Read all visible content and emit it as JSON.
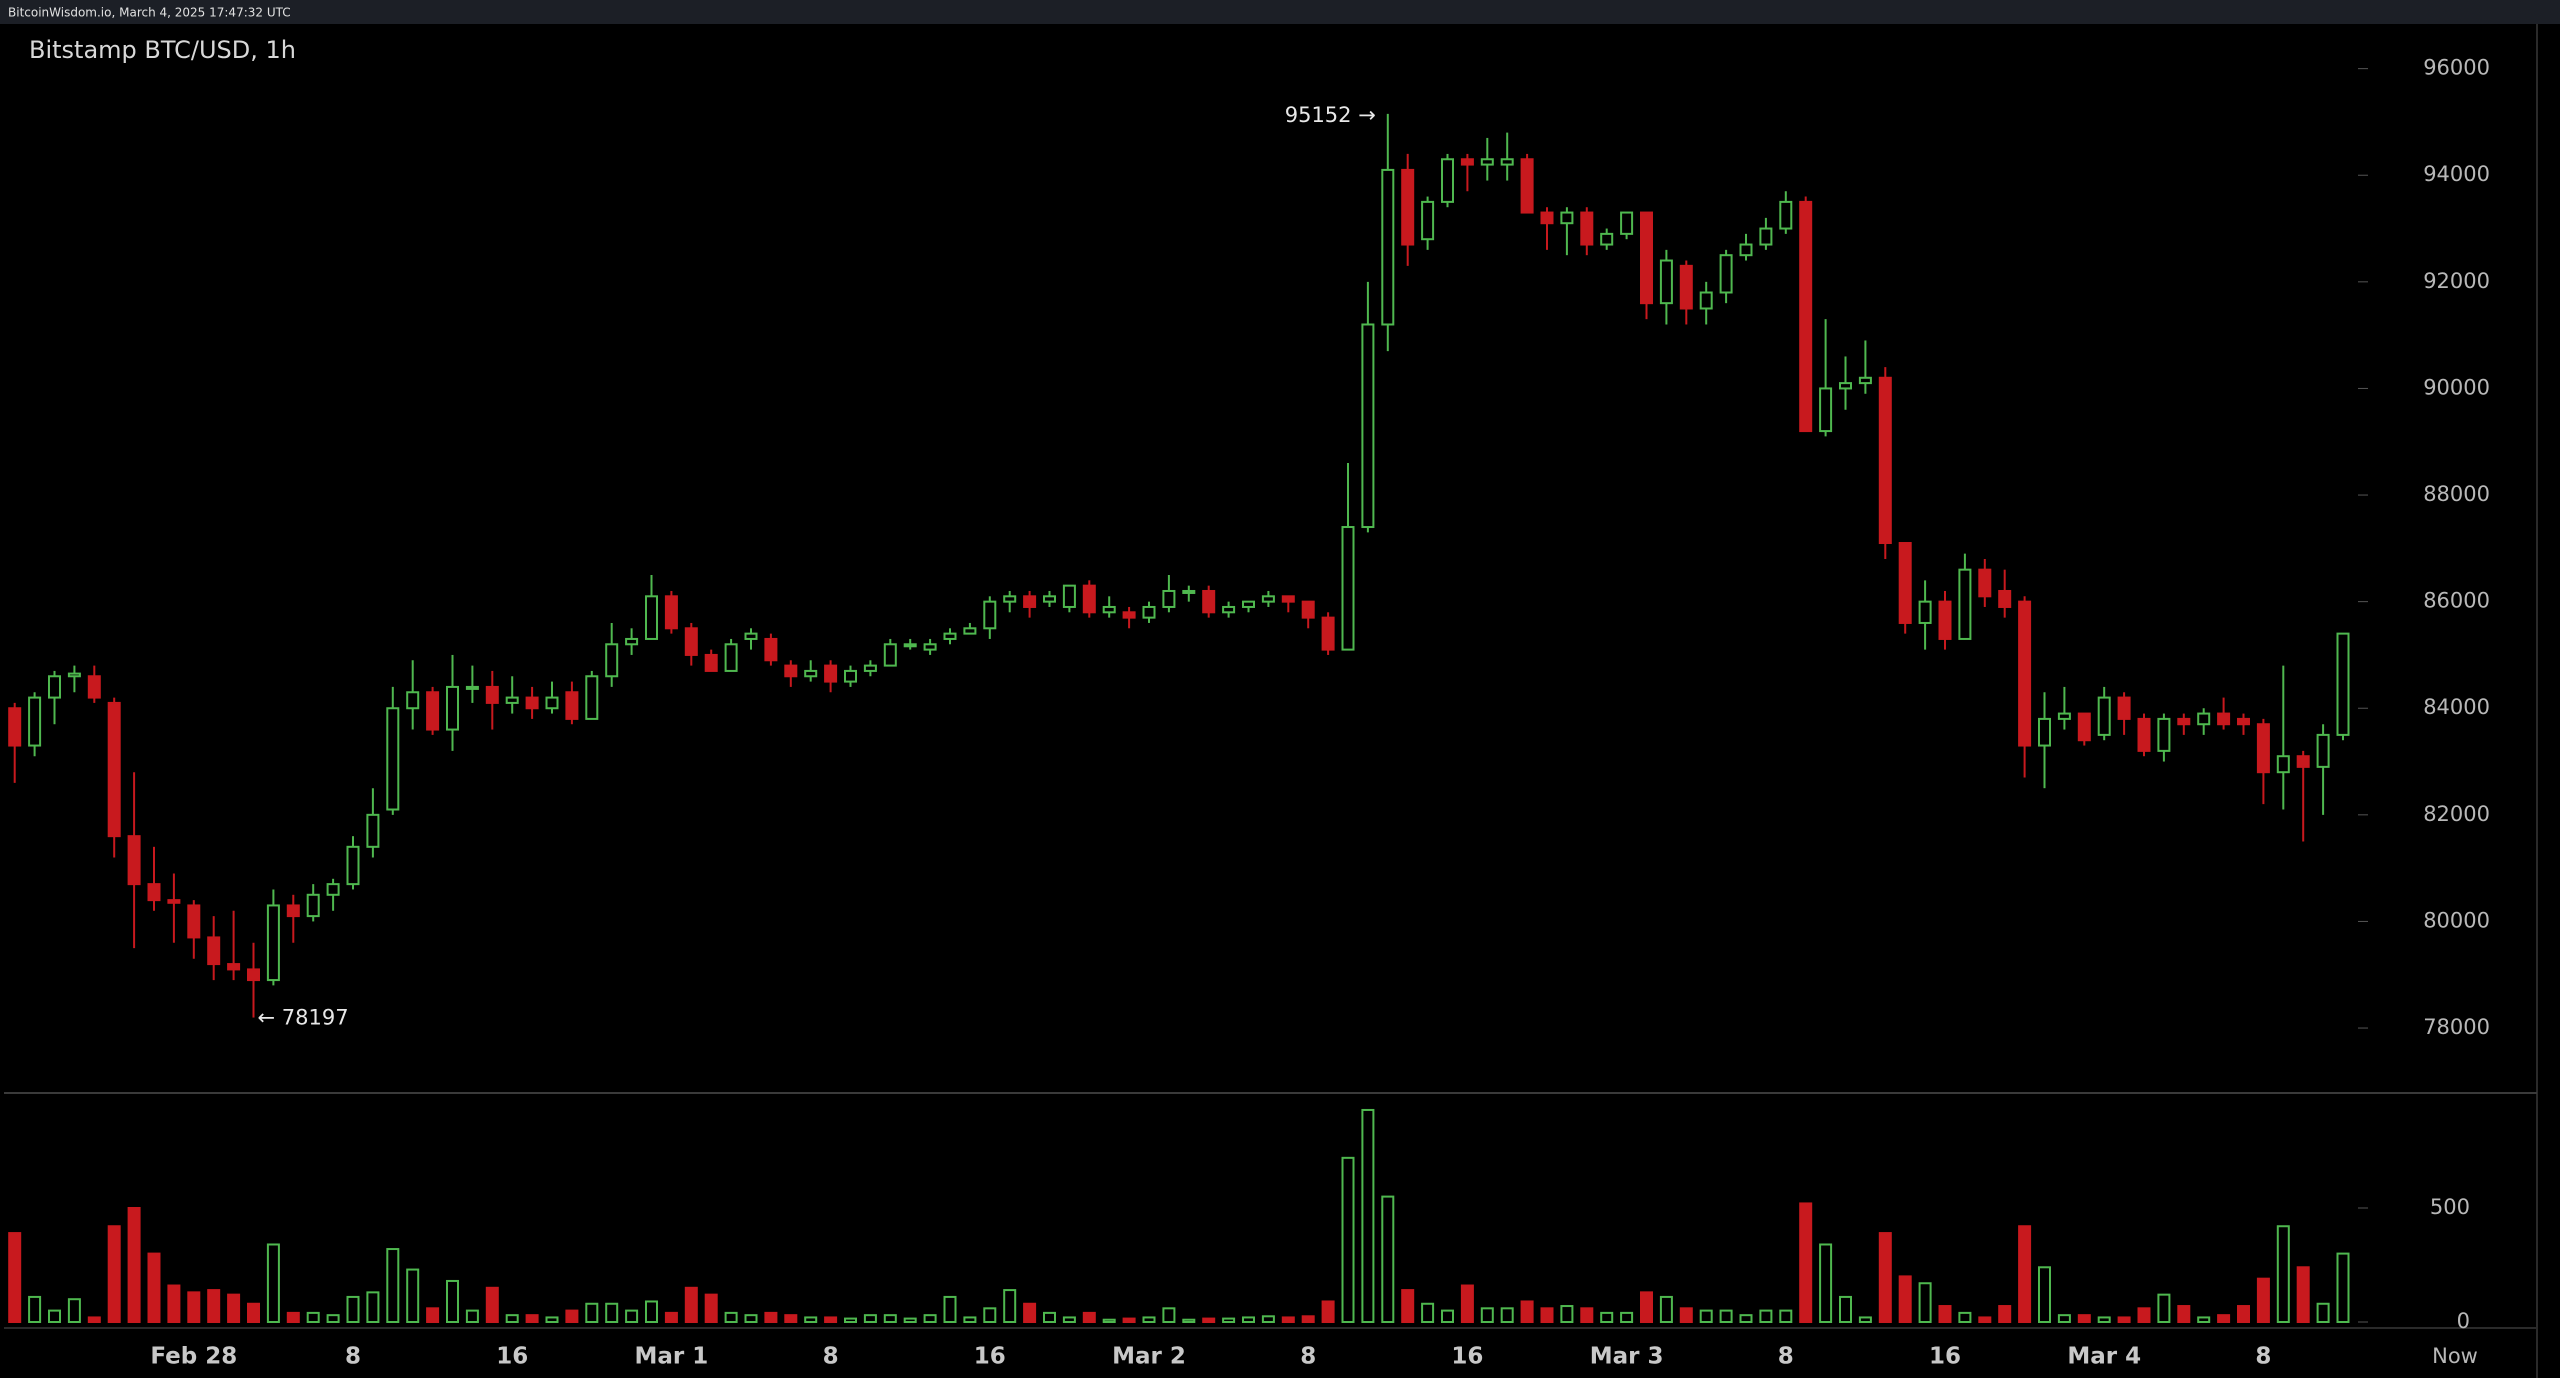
{
  "header": "BitcoinWisdom.io, March 4, 2025 17:47:32 UTC",
  "chart_data": {
    "type": "candlestick",
    "title": "Bitstamp BTC/USD, 1h",
    "up_color": "#4fb84f",
    "down_color": "#c8191e",
    "categories": [
      null,
      null,
      null,
      null,
      null,
      null,
      null,
      null,
      null,
      "Feb 28",
      null,
      null,
      null,
      null,
      null,
      null,
      null,
      "8",
      null,
      null,
      null,
      null,
      null,
      null,
      null,
      "16",
      null,
      null,
      null,
      null,
      null,
      null,
      null,
      "Mar 1",
      null,
      null,
      null,
      null,
      null,
      null,
      null,
      "8",
      null,
      null,
      null,
      null,
      null,
      null,
      null,
      "16",
      null,
      null,
      null,
      null,
      null,
      null,
      null,
      "Mar 2",
      null,
      null,
      null,
      null,
      null,
      null,
      null,
      "8",
      null,
      null,
      null,
      null,
      null,
      null,
      null,
      "16",
      null,
      null,
      null,
      null,
      null,
      null,
      null,
      "Mar 3",
      null,
      null,
      null,
      null,
      null,
      null,
      null,
      "8",
      null,
      null,
      null,
      null,
      null,
      null,
      null,
      "16",
      null,
      null,
      null,
      null,
      null,
      null,
      null,
      "Mar 4",
      null,
      null,
      null,
      null,
      null,
      null,
      null,
      "8",
      null,
      null,
      null,
      null
    ],
    "now_label": "Now",
    "open": [
      84000,
      83300,
      84200,
      84600,
      84600,
      84100,
      81600,
      80700,
      80400,
      80300,
      79700,
      79200,
      79100,
      78900,
      80300,
      80100,
      80500,
      80700,
      81400,
      82100,
      84000,
      84300,
      83600,
      84400,
      84400,
      84100,
      84200,
      84000,
      84300,
      83800,
      84600,
      85200,
      85300,
      86100,
      85500,
      85000,
      84700,
      85300,
      85300,
      84800,
      84600,
      84800,
      84500,
      84700,
      84800,
      85200,
      85100,
      85300,
      85400,
      85500,
      86000,
      86100,
      86000,
      85900,
      86300,
      85800,
      85800,
      85700,
      85900,
      86200,
      86200,
      85800,
      85900,
      86000,
      86100,
      86000,
      85700,
      85100,
      87400,
      91200,
      94100,
      92800,
      93500,
      94300,
      94200,
      94200,
      94300,
      93300,
      93100,
      93300,
      92700,
      92900,
      93300,
      91600,
      92300,
      91500,
      91800,
      92500,
      92700,
      93000,
      93500,
      89200,
      90000,
      90100,
      90200,
      87100,
      85600,
      86000,
      85300,
      86600,
      86200,
      86000,
      83300,
      83800,
      83900,
      83500,
      84200,
      83800,
      83200,
      83800,
      83700,
      83900,
      83800,
      83700,
      82800,
      83100,
      82900,
      83500
    ],
    "high": [
      84100,
      84300,
      84700,
      84800,
      84800,
      84200,
      82800,
      81400,
      80900,
      80400,
      80100,
      80200,
      79600,
      80600,
      80500,
      80700,
      80800,
      81600,
      82500,
      84400,
      84900,
      84400,
      85000,
      84800,
      84700,
      84600,
      84400,
      84500,
      84500,
      84700,
      85600,
      85500,
      86500,
      86200,
      85600,
      85100,
      85300,
      85500,
      85400,
      84900,
      84900,
      84900,
      84800,
      84900,
      85300,
      85300,
      85300,
      85500,
      85600,
      86100,
      86200,
      86200,
      86200,
      86300,
      86400,
      86100,
      85900,
      86000,
      86500,
      86300,
      86300,
      86000,
      86000,
      86200,
      86100,
      86000,
      85800,
      88600,
      92000,
      95152,
      94400,
      93600,
      94400,
      94400,
      94700,
      94800,
      94400,
      93400,
      93400,
      93400,
      93000,
      93300,
      93300,
      92600,
      92400,
      92000,
      92600,
      92900,
      93200,
      93700,
      93600,
      91300,
      90600,
      90900,
      90400,
      87100,
      86400,
      86200,
      86900,
      86800,
      86600,
      86100,
      84300,
      84400,
      83900,
      84400,
      84300,
      83900,
      83900,
      83900,
      84000,
      84200,
      83900,
      83800,
      84800,
      83200,
      83700,
      85400
    ],
    "low": [
      82600,
      83100,
      83700,
      84300,
      84100,
      81200,
      79500,
      80200,
      79600,
      79300,
      78900,
      78900,
      78197,
      78800,
      79600,
      80000,
      80200,
      80600,
      81200,
      82000,
      83600,
      83500,
      83200,
      84100,
      83600,
      83900,
      83800,
      83900,
      83700,
      83800,
      84400,
      85000,
      85300,
      85400,
      84800,
      84700,
      84700,
      85100,
      84800,
      84400,
      84500,
      84300,
      84400,
      84600,
      84800,
      85100,
      85000,
      85200,
      85400,
      85300,
      85800,
      85700,
      85900,
      85800,
      85700,
      85700,
      85500,
      85600,
      85800,
      86000,
      85700,
      85700,
      85800,
      85900,
      85800,
      85500,
      85000,
      85100,
      87300,
      90700,
      92300,
      92600,
      93400,
      93700,
      93900,
      93900,
      93300,
      92600,
      92500,
      92500,
      92600,
      92800,
      91300,
      91200,
      91200,
      91200,
      91600,
      92400,
      92600,
      92900,
      89200,
      89100,
      89600,
      89900,
      86800,
      85400,
      85100,
      85100,
      85300,
      85900,
      85700,
      82700,
      82500,
      83600,
      83300,
      83400,
      83500,
      83100,
      83000,
      83500,
      83500,
      83600,
      83500,
      82200,
      82100,
      81500,
      82000,
      83400
    ],
    "close": [
      83300,
      84200,
      84600,
      84650,
      84200,
      81600,
      80700,
      80400,
      80350,
      79700,
      79200,
      79100,
      78900,
      80300,
      80100,
      80500,
      80700,
      81400,
      82000,
      84000,
      84300,
      83600,
      84400,
      84400,
      84100,
      84200,
      84000,
      84200,
      83800,
      84600,
      85200,
      85300,
      86100,
      85500,
      85000,
      84700,
      85200,
      85400,
      84900,
      84600,
      84700,
      84500,
      84700,
      84800,
      85200,
      85200,
      85200,
      85400,
      85500,
      86000,
      86100,
      85900,
      86100,
      86300,
      85800,
      85900,
      85700,
      85900,
      86200,
      86200,
      85800,
      85900,
      86000,
      86100,
      86000,
      85700,
      85100,
      87400,
      91200,
      94100,
      92700,
      93500,
      94300,
      94200,
      94300,
      94300,
      93300,
      93100,
      93300,
      92700,
      92900,
      93300,
      91600,
      92400,
      91500,
      91800,
      92500,
      92700,
      93000,
      93500,
      89200,
      90000,
      90100,
      90200,
      87100,
      85600,
      86000,
      85300,
      86600,
      86100,
      85900,
      83300,
      83800,
      83900,
      83400,
      84200,
      83800,
      83200,
      83800,
      83700,
      83900,
      83700,
      83700,
      82800,
      83100,
      82900,
      83500,
      85400
    ],
    "volume": [
      390,
      110,
      50,
      100,
      20,
      420,
      500,
      300,
      160,
      130,
      140,
      120,
      80,
      340,
      40,
      40,
      30,
      110,
      130,
      320,
      230,
      60,
      180,
      50,
      150,
      30,
      30,
      20,
      50,
      80,
      80,
      50,
      90,
      40,
      150,
      120,
      40,
      30,
      40,
      30,
      20,
      20,
      15,
      30,
      30,
      15,
      30,
      110,
      20,
      60,
      140,
      80,
      40,
      20,
      40,
      10,
      15,
      20,
      60,
      10,
      15,
      15,
      20,
      25,
      20,
      25,
      90,
      720,
      930,
      550,
      140,
      80,
      50,
      160,
      60,
      60,
      90,
      60,
      70,
      60,
      40,
      40,
      130,
      110,
      60,
      50,
      50,
      30,
      50,
      50,
      520,
      340,
      110,
      20,
      390,
      200,
      170,
      70,
      40,
      20,
      70,
      420,
      240,
      30,
      30,
      20,
      20,
      60,
      120,
      70,
      20,
      30,
      70,
      190,
      420,
      240,
      80,
      300
    ],
    "ylim": [
      76800,
      96800
    ],
    "yticks": [
      78000,
      80000,
      82000,
      84000,
      86000,
      88000,
      90000,
      92000,
      94000,
      96000
    ],
    "volume_ylim": [
      0,
      1000
    ],
    "volume_yticks": [
      0,
      500
    ],
    "annotations": [
      "95152 →",
      "← 78197"
    ]
  }
}
